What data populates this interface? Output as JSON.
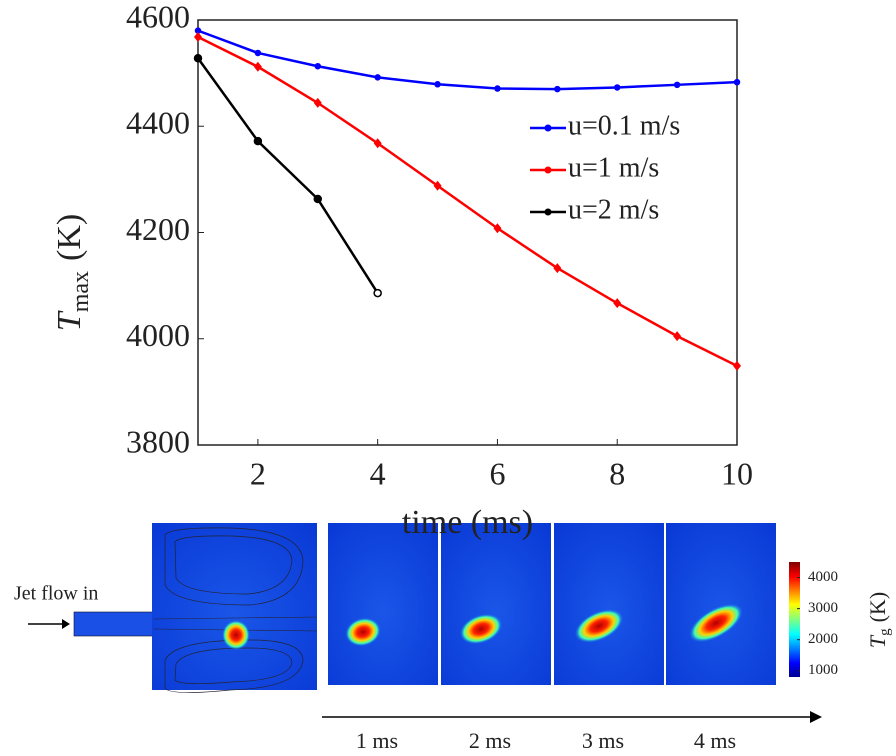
{
  "chart_data": {
    "type": "line",
    "y_label": {
      "symbol": "T",
      "subscript": "max",
      "unit": "(K)"
    },
    "x_label": "time (ms)",
    "x": [
      1,
      2,
      3,
      4,
      5,
      6,
      7,
      8,
      9,
      10
    ],
    "series": [
      {
        "name": "u=0.1 m/s",
        "color": "#0000ff",
        "marker": "dot",
        "values": [
          4580,
          4538,
          4513,
          4492,
          4479,
          4471,
          4470,
          4473,
          4478,
          4483
        ]
      },
      {
        "name": "u=1 m/s",
        "color": "#ff0000",
        "marker": "diamond",
        "values": [
          4568,
          4512,
          4444,
          4368,
          4288,
          4208,
          4133,
          4067,
          4005,
          3949
        ]
      },
      {
        "name": "u=2 m/s",
        "color": "#000000",
        "marker": "circle",
        "values": [
          4528,
          4372,
          4263,
          4086,
          null,
          null,
          null,
          null,
          null,
          null
        ]
      }
    ],
    "xlim": [
      1,
      10
    ],
    "xticks": [
      2,
      4,
      6,
      8,
      10
    ],
    "ylim": [
      3800,
      4600
    ],
    "yticks": [
      3800,
      4000,
      4200,
      4400,
      4600
    ],
    "legend": "upper-right"
  },
  "panel": {
    "inlet_label": "Jet flow in",
    "frames": [
      "1 ms",
      "2 ms",
      "3 ms",
      "4 ms"
    ],
    "colorbar": {
      "label": {
        "symbol": "T",
        "subscript": "g",
        "unit": "(K)"
      },
      "lim": [
        800,
        4500
      ],
      "ticks": [
        1000,
        2000,
        3000,
        4000
      ]
    }
  }
}
